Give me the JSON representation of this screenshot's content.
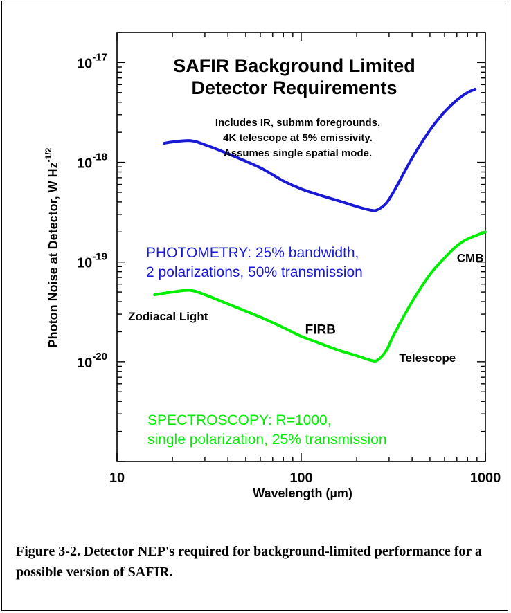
{
  "caption": "Figure 3-2.  Detector NEP's required for background-limited performance for a possible version of SAFIR.",
  "chart_data": {
    "type": "line",
    "title": [
      "SAFIR Background Limited",
      "Detector Requirements"
    ],
    "note": [
      "Includes IR, submm foregrounds,",
      "4K telescope at 5% emissivity.",
      "Assumes single spatial mode."
    ],
    "xlabel": "Wavelength (µm)",
    "ylabel": "Photon Noise at Detector, W Hz",
    "ylabel_exponent": "-1/2",
    "x_scale": "log",
    "y_scale": "log",
    "xlim": [
      10,
      1000
    ],
    "ylim": [
      1e-21,
      2e-17
    ],
    "x_tick_labels": [
      {
        "value": 10,
        "label": "10"
      },
      {
        "value": 100,
        "label": "100"
      },
      {
        "value": 1000,
        "label": "1000"
      }
    ],
    "y_tick_labels": [
      {
        "value": 1e-17,
        "base": "10",
        "exp": "-17"
      },
      {
        "value": 1e-18,
        "base": "10",
        "exp": "-18"
      },
      {
        "value": 1e-19,
        "base": "10",
        "exp": "-19"
      },
      {
        "value": 1e-20,
        "base": "10",
        "exp": "-20"
      }
    ],
    "grid": false,
    "series": [
      {
        "color": "#1a1ad6",
        "label_lines": [
          "PHOTOMETRY: 25% bandwidth,",
          "2 polarizations, 50% transmission"
        ],
        "x": [
          18,
          20,
          25,
          30,
          40,
          60,
          80,
          100,
          130,
          160,
          200,
          240,
          260,
          290,
          320,
          400,
          500,
          600,
          700,
          800,
          880
        ],
        "y": [
          1.55e-18,
          1.6e-18,
          1.65e-18,
          1.5e-18,
          1.22e-18,
          8.8e-19,
          6.5e-19,
          5.4e-19,
          4.6e-19,
          4.1e-19,
          3.6e-19,
          3.3e-19,
          3.35e-19,
          3.9e-19,
          5.2e-19,
          1.1e-18,
          2.1e-18,
          3.2e-18,
          4.2e-18,
          5e-18,
          5.4e-18
        ]
      },
      {
        "color": "#00ee00",
        "label_lines": [
          "SPECTROSCOPY: R=1000,",
          "single polarization, 25% transmission"
        ],
        "x": [
          16,
          20,
          25,
          30,
          40,
          60,
          80,
          100,
          130,
          160,
          200,
          240,
          260,
          290,
          320,
          400,
          500,
          600,
          700,
          800,
          1000
        ],
        "y": [
          4.7e-20,
          5e-20,
          5.2e-20,
          4.7e-20,
          3.8e-20,
          2.8e-20,
          2.2e-20,
          1.8e-20,
          1.5e-20,
          1.3e-20,
          1.15e-20,
          1.03e-20,
          1.04e-20,
          1.3e-20,
          1.9e-20,
          4e-20,
          7.5e-20,
          1.1e-19,
          1.45e-19,
          1.7e-19,
          2e-19
        ]
      }
    ],
    "annotations": [
      {
        "text": "CMB",
        "x": 700,
        "y": 1e-19
      },
      {
        "text": "Zodiacal Light",
        "x": 11.5,
        "y": 2.6e-20
      },
      {
        "text": "FIRB",
        "x": 105,
        "y": 1.9e-20
      },
      {
        "text": "Telescope",
        "x": 340,
        "y": 1e-20
      }
    ]
  }
}
